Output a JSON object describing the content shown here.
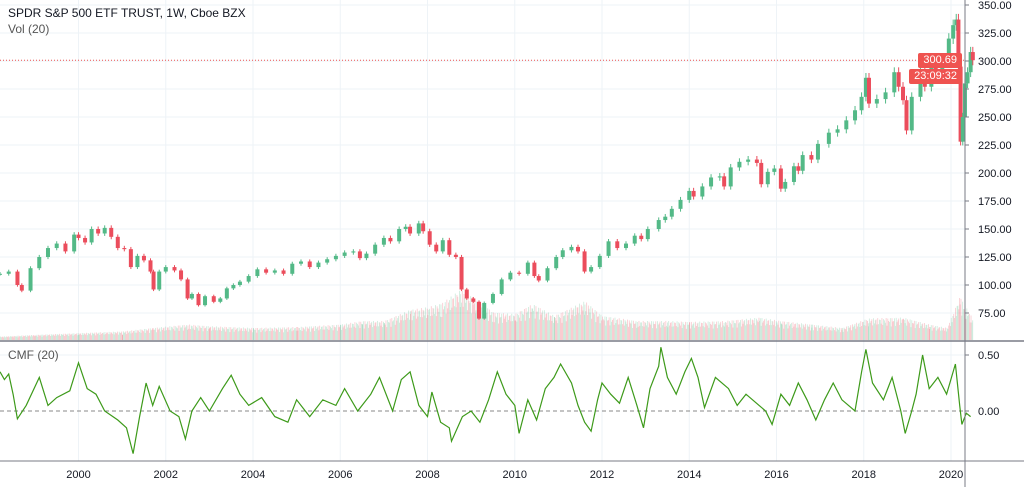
{
  "header": {
    "title": "SPDR S&P 500 ETF TRUST, 1W, Cboe BZX",
    "volume_label": "Vol (20)"
  },
  "indicator": {
    "label": "CMF (20)"
  },
  "price_label": {
    "value": "300.69",
    "countdown": "23:09:32"
  },
  "colors": {
    "up": "#53b987",
    "down": "#eb4d5c",
    "cmf": "#3d9a1a",
    "price_line": "#ef5350",
    "grid": "#eef3f7"
  },
  "chart_data": [
    {
      "type": "candlestick",
      "title": "SPDR S&P 500 ETF TRUST, 1W, Cboe BZX",
      "ylim": [
        62,
        352
      ],
      "xlim": [
        1998.2,
        2020.65
      ],
      "y_ticks": [
        "350.00",
        "325.00",
        "300.00",
        "275.00",
        "250.00",
        "225.00",
        "200.00",
        "175.00",
        "150.00",
        "125.00",
        "100.00",
        "75.00"
      ],
      "x_ticks": [
        "2000",
        "2002",
        "2004",
        "2006",
        "2008",
        "2010",
        "2012",
        "2014",
        "2016",
        "2018",
        "2020"
      ],
      "last_price": 300.69,
      "points": [
        [
          1998.2,
          110
        ],
        [
          1998.4,
          112
        ],
        [
          1998.6,
          100
        ],
        [
          1998.7,
          95
        ],
        [
          1998.9,
          115
        ],
        [
          1999.1,
          125
        ],
        [
          1999.3,
          133
        ],
        [
          1999.5,
          137
        ],
        [
          1999.7,
          130
        ],
        [
          1999.9,
          145
        ],
        [
          2000.0,
          142
        ],
        [
          2000.15,
          138
        ],
        [
          2000.3,
          150
        ],
        [
          2000.45,
          146
        ],
        [
          2000.6,
          151
        ],
        [
          2000.75,
          143
        ],
        [
          2000.9,
          133
        ],
        [
          2001.05,
          132
        ],
        [
          2001.2,
          116
        ],
        [
          2001.35,
          126
        ],
        [
          2001.5,
          122
        ],
        [
          2001.65,
          112
        ],
        [
          2001.72,
          96
        ],
        [
          2001.85,
          112
        ],
        [
          2002.0,
          116
        ],
        [
          2002.2,
          113
        ],
        [
          2002.35,
          105
        ],
        [
          2002.5,
          88
        ],
        [
          2002.6,
          92
        ],
        [
          2002.75,
          82
        ],
        [
          2002.9,
          90
        ],
        [
          2003.1,
          85
        ],
        [
          2003.25,
          88
        ],
        [
          2003.4,
          97
        ],
        [
          2003.55,
          100
        ],
        [
          2003.7,
          103
        ],
        [
          2003.9,
          108
        ],
        [
          2004.1,
          114
        ],
        [
          2004.3,
          111
        ],
        [
          2004.5,
          113
        ],
        [
          2004.7,
          110
        ],
        [
          2004.9,
          119
        ],
        [
          2005.1,
          121
        ],
        [
          2005.3,
          116
        ],
        [
          2005.5,
          120
        ],
        [
          2005.7,
          123
        ],
        [
          2005.9,
          126
        ],
        [
          2006.1,
          129
        ],
        [
          2006.3,
          130
        ],
        [
          2006.45,
          124
        ],
        [
          2006.6,
          128
        ],
        [
          2006.8,
          136
        ],
        [
          2007.0,
          142
        ],
        [
          2007.15,
          139
        ],
        [
          2007.35,
          150
        ],
        [
          2007.5,
          152
        ],
        [
          2007.6,
          146
        ],
        [
          2007.8,
          155
        ],
        [
          2007.9,
          148
        ],
        [
          2008.05,
          136
        ],
        [
          2008.2,
          130
        ],
        [
          2008.35,
          140
        ],
        [
          2008.5,
          127
        ],
        [
          2008.65,
          125
        ],
        [
          2008.78,
          96
        ],
        [
          2008.9,
          88
        ],
        [
          2009.05,
          85
        ],
        [
          2009.18,
          70
        ],
        [
          2009.3,
          84
        ],
        [
          2009.5,
          92
        ],
        [
          2009.7,
          105
        ],
        [
          2009.9,
          111
        ],
        [
          2010.1,
          110
        ],
        [
          2010.3,
          120
        ],
        [
          2010.45,
          108
        ],
        [
          2010.55,
          104
        ],
        [
          2010.75,
          115
        ],
        [
          2010.95,
          125
        ],
        [
          2011.1,
          131
        ],
        [
          2011.3,
          134
        ],
        [
          2011.45,
          130
        ],
        [
          2011.6,
          112
        ],
        [
          2011.75,
          116
        ],
        [
          2011.95,
          126
        ],
        [
          2012.15,
          139
        ],
        [
          2012.35,
          133
        ],
        [
          2012.55,
          137
        ],
        [
          2012.75,
          144
        ],
        [
          2012.9,
          141
        ],
        [
          2013.05,
          150
        ],
        [
          2013.3,
          158
        ],
        [
          2013.45,
          161
        ],
        [
          2013.6,
          168
        ],
        [
          2013.8,
          176
        ],
        [
          2014.0,
          184
        ],
        [
          2014.1,
          179
        ],
        [
          2014.3,
          188
        ],
        [
          2014.5,
          196
        ],
        [
          2014.7,
          197
        ],
        [
          2014.8,
          188
        ],
        [
          2014.95,
          205
        ],
        [
          2015.15,
          210
        ],
        [
          2015.35,
          212
        ],
        [
          2015.55,
          209
        ],
        [
          2015.65,
          190
        ],
        [
          2015.8,
          201
        ],
        [
          2015.95,
          204
        ],
        [
          2016.1,
          186
        ],
        [
          2016.2,
          192
        ],
        [
          2016.4,
          206
        ],
        [
          2016.5,
          202
        ],
        [
          2016.6,
          216
        ],
        [
          2016.8,
          212
        ],
        [
          2016.95,
          226
        ],
        [
          2017.2,
          236
        ],
        [
          2017.4,
          239
        ],
        [
          2017.6,
          247
        ],
        [
          2017.8,
          256
        ],
        [
          2017.95,
          268
        ],
        [
          2018.05,
          285
        ],
        [
          2018.12,
          262
        ],
        [
          2018.3,
          266
        ],
        [
          2018.5,
          272
        ],
        [
          2018.7,
          290
        ],
        [
          2018.8,
          277
        ],
        [
          2018.9,
          265
        ],
        [
          2018.98,
          238
        ],
        [
          2019.1,
          268
        ],
        [
          2019.3,
          290
        ],
        [
          2019.4,
          277
        ],
        [
          2019.55,
          300
        ],
        [
          2019.65,
          288
        ],
        [
          2019.8,
          300
        ],
        [
          2019.95,
          320
        ],
        [
          2020.05,
          332
        ],
        [
          2020.12,
          337
        ],
        [
          2020.17,
          295
        ],
        [
          2020.22,
          228
        ],
        [
          2020.27,
          250
        ],
        [
          2020.32,
          280
        ],
        [
          2020.38,
          290
        ],
        [
          2020.45,
          308
        ],
        [
          2020.5,
          300.69
        ]
      ],
      "volume": [
        [
          1998.2,
          4
        ],
        [
          1999.0,
          6
        ],
        [
          2000.0,
          8
        ],
        [
          2001.0,
          10
        ],
        [
          2001.7,
          14
        ],
        [
          2002.5,
          18
        ],
        [
          2003.0,
          16
        ],
        [
          2004.0,
          14
        ],
        [
          2005.0,
          15
        ],
        [
          2006.0,
          18
        ],
        [
          2006.5,
          22
        ],
        [
          2007.0,
          22
        ],
        [
          2007.6,
          35
        ],
        [
          2008.0,
          38
        ],
        [
          2008.3,
          42
        ],
        [
          2008.75,
          58
        ],
        [
          2009.1,
          48
        ],
        [
          2009.5,
          32
        ],
        [
          2010.0,
          30
        ],
        [
          2010.4,
          42
        ],
        [
          2010.9,
          28
        ],
        [
          2011.6,
          45
        ],
        [
          2012.0,
          28
        ],
        [
          2012.8,
          22
        ],
        [
          2013.5,
          22
        ],
        [
          2014.0,
          21
        ],
        [
          2014.8,
          22
        ],
        [
          2015.6,
          26
        ],
        [
          2016.1,
          22
        ],
        [
          2016.8,
          18
        ],
        [
          2017.5,
          14
        ],
        [
          2018.1,
          25
        ],
        [
          2018.9,
          26
        ],
        [
          2019.5,
          18
        ],
        [
          2019.9,
          14
        ],
        [
          2020.2,
          50
        ],
        [
          2020.5,
          24
        ]
      ]
    },
    {
      "type": "line",
      "title": "CMF (20)",
      "ylim": [
        -0.5,
        0.62
      ],
      "y_ticks": [
        "0.50",
        "0.00"
      ],
      "reference_line": 0,
      "points": [
        [
          1998.2,
          0.35
        ],
        [
          1998.3,
          0.28
        ],
        [
          1998.4,
          0.33
        ],
        [
          1998.5,
          0.15
        ],
        [
          1998.6,
          -0.07
        ],
        [
          1998.8,
          0.05
        ],
        [
          1999.1,
          0.3
        ],
        [
          1999.3,
          0.05
        ],
        [
          1999.5,
          0.12
        ],
        [
          1999.8,
          0.18
        ],
        [
          2000.0,
          0.43
        ],
        [
          2000.2,
          0.2
        ],
        [
          2000.4,
          0.15
        ],
        [
          2000.6,
          0.0
        ],
        [
          2000.9,
          -0.08
        ],
        [
          2001.1,
          -0.15
        ],
        [
          2001.25,
          -0.38
        ],
        [
          2001.4,
          -0.05
        ],
        [
          2001.55,
          0.25
        ],
        [
          2001.7,
          0.05
        ],
        [
          2001.85,
          0.22
        ],
        [
          2002.1,
          0.0
        ],
        [
          2002.3,
          -0.05
        ],
        [
          2002.45,
          -0.25
        ],
        [
          2002.6,
          0.0
        ],
        [
          2002.8,
          0.12
        ],
        [
          2003.0,
          0.0
        ],
        [
          2003.3,
          0.2
        ],
        [
          2003.5,
          0.32
        ],
        [
          2003.7,
          0.15
        ],
        [
          2003.9,
          0.05
        ],
        [
          2004.2,
          0.12
        ],
        [
          2004.5,
          -0.05
        ],
        [
          2004.8,
          -0.1
        ],
        [
          2005.0,
          0.1
        ],
        [
          2005.3,
          -0.05
        ],
        [
          2005.6,
          0.1
        ],
        [
          2005.9,
          0.05
        ],
        [
          2006.1,
          0.2
        ],
        [
          2006.4,
          0.0
        ],
        [
          2006.7,
          0.15
        ],
        [
          2006.9,
          0.3
        ],
        [
          2007.2,
          0.0
        ],
        [
          2007.4,
          0.28
        ],
        [
          2007.6,
          0.35
        ],
        [
          2007.8,
          0.05
        ],
        [
          2008.0,
          -0.05
        ],
        [
          2008.1,
          0.17
        ],
        [
          2008.3,
          -0.1
        ],
        [
          2008.5,
          -0.15
        ],
        [
          2008.55,
          -0.27
        ],
        [
          2008.8,
          -0.05
        ],
        [
          2009.0,
          0.0
        ],
        [
          2009.2,
          -0.1
        ],
        [
          2009.4,
          0.1
        ],
        [
          2009.6,
          0.35
        ],
        [
          2009.8,
          0.15
        ],
        [
          2010.0,
          0.05
        ],
        [
          2010.1,
          -0.2
        ],
        [
          2010.3,
          0.1
        ],
        [
          2010.5,
          -0.08
        ],
        [
          2010.7,
          0.2
        ],
        [
          2010.9,
          0.3
        ],
        [
          2011.05,
          0.42
        ],
        [
          2011.3,
          0.25
        ],
        [
          2011.45,
          0.05
        ],
        [
          2011.6,
          -0.1
        ],
        [
          2011.75,
          -0.18
        ],
        [
          2011.9,
          0.1
        ],
        [
          2012.0,
          0.25
        ],
        [
          2012.2,
          0.15
        ],
        [
          2012.4,
          0.07
        ],
        [
          2012.6,
          0.3
        ],
        [
          2012.8,
          0.05
        ],
        [
          2012.95,
          -0.15
        ],
        [
          2013.1,
          0.2
        ],
        [
          2013.3,
          0.4
        ],
        [
          2013.35,
          0.57
        ],
        [
          2013.5,
          0.3
        ],
        [
          2013.7,
          0.15
        ],
        [
          2013.9,
          0.35
        ],
        [
          2014.05,
          0.47
        ],
        [
          2014.2,
          0.3
        ],
        [
          2014.35,
          0.03
        ],
        [
          2014.6,
          0.3
        ],
        [
          2014.9,
          0.2
        ],
        [
          2015.1,
          0.05
        ],
        [
          2015.3,
          0.15
        ],
        [
          2015.6,
          0.05
        ],
        [
          2015.75,
          0.0
        ],
        [
          2015.9,
          -0.12
        ],
        [
          2016.1,
          0.15
        ],
        [
          2016.3,
          0.05
        ],
        [
          2016.5,
          0.25
        ],
        [
          2016.7,
          0.1
        ],
        [
          2016.9,
          -0.08
        ],
        [
          2017.1,
          0.1
        ],
        [
          2017.3,
          0.25
        ],
        [
          2017.5,
          0.1
        ],
        [
          2017.8,
          0.0
        ],
        [
          2017.95,
          0.35
        ],
        [
          2018.05,
          0.55
        ],
        [
          2018.2,
          0.25
        ],
        [
          2018.45,
          0.1
        ],
        [
          2018.65,
          0.3
        ],
        [
          2018.85,
          0.0
        ],
        [
          2018.95,
          -0.2
        ],
        [
          2019.1,
          0.0
        ],
        [
          2019.2,
          0.15
        ],
        [
          2019.35,
          0.5
        ],
        [
          2019.5,
          0.2
        ],
        [
          2019.7,
          0.3
        ],
        [
          2019.9,
          0.15
        ],
        [
          2020.1,
          0.42
        ],
        [
          2020.2,
          0.05
        ],
        [
          2020.25,
          -0.12
        ],
        [
          2020.35,
          -0.02
        ],
        [
          2020.45,
          -0.05
        ]
      ]
    }
  ]
}
